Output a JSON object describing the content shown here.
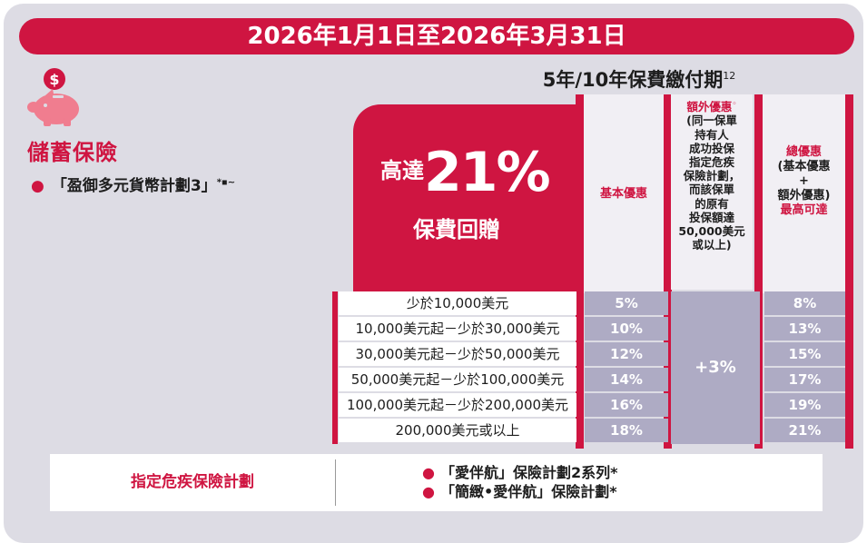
{
  "date_range": "2026年1月1日至2026年3月31日",
  "payment_period": {
    "label": "5年/10年保費繳付期",
    "note": "12"
  },
  "savings": {
    "icon": "piggy-bank-icon",
    "title": "儲蓄保險",
    "plan": "「盈御多元貨幣計劃3」",
    "plan_marks": "*▪~"
  },
  "highlight": {
    "prefix": "高達",
    "percent": "21%",
    "text": "保費回贈"
  },
  "columns": {
    "basic": "基本優惠",
    "extra_title": "額外優惠",
    "extra_mark": "◦",
    "extra_desc": [
      "(同一保單",
      "持有人",
      "成功投保",
      "指定危疾",
      "保險計劃，",
      "而該保單",
      "的原有",
      "投保額達",
      "50,000美元",
      "或以上)"
    ],
    "total_title": "總優惠",
    "total_desc": [
      "(基本優惠",
      "+",
      "額外優惠)"
    ],
    "total_max": "最高可達"
  },
  "rows": [
    {
      "range": "少於10,000美元",
      "basic": "5%",
      "total": "8%"
    },
    {
      "range": "10,000美元起－少於30,000美元",
      "basic": "10%",
      "total": "13%"
    },
    {
      "range": "30,000美元起－少於50,000美元",
      "basic": "12%",
      "total": "15%"
    },
    {
      "range": "50,000美元起－少於100,000美元",
      "basic": "14%",
      "total": "17%"
    },
    {
      "range": "100,000美元起－少於200,000美元",
      "basic": "16%",
      "total": "19%"
    },
    {
      "range": "200,000美元或以上",
      "basic": "18%",
      "total": "21%"
    }
  ],
  "extra_value": "+3%",
  "critical_illness": {
    "label": "指定危疾保險計劃",
    "items": [
      "「愛伴航」保險計劃2系列*",
      "「簡緻•愛伴航」保險計劃*"
    ]
  },
  "colors": {
    "accent": "#cf1541",
    "panel": "#dddce4",
    "cell": "#aeabc4"
  }
}
